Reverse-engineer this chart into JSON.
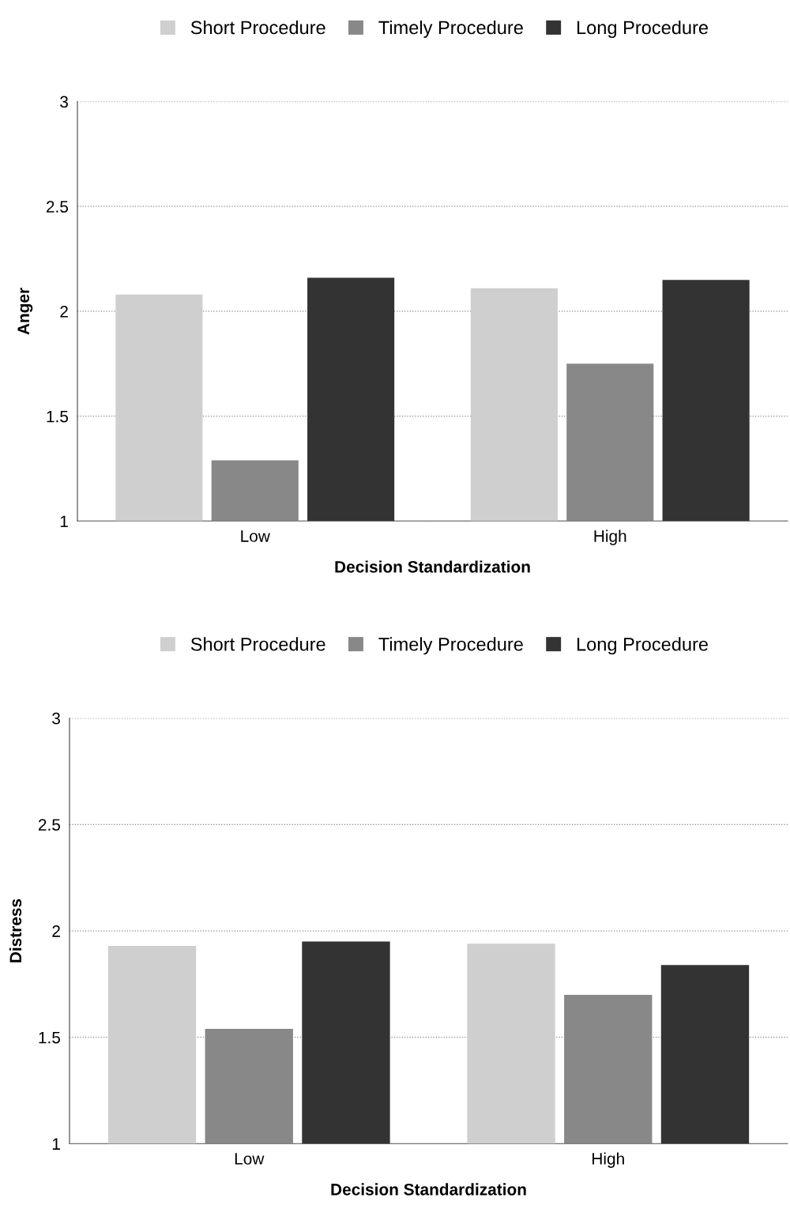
{
  "chart_data": [
    {
      "type": "bar",
      "xlabel": "Decision Standardization",
      "ylabel": "Anger",
      "categories": [
        "Low",
        "High"
      ],
      "series": [
        {
          "name": "Short Procedure",
          "color": "#cfcfcf",
          "values": [
            2.08,
            2.11
          ]
        },
        {
          "name": "Timely Procedure",
          "color": "#888888",
          "values": [
            1.29,
            1.75
          ]
        },
        {
          "name": "Long Procedure",
          "color": "#333333",
          "values": [
            2.16,
            2.15
          ]
        }
      ],
      "ylim": [
        1,
        3
      ],
      "yticks": [
        1,
        1.5,
        2,
        2.5,
        3
      ],
      "grid": "y",
      "legend": "top"
    },
    {
      "type": "bar",
      "xlabel": "Decision Standardization",
      "ylabel": "Distress",
      "categories": [
        "Low",
        "High"
      ],
      "series": [
        {
          "name": "Short Procedure",
          "color": "#cfcfcf",
          "values": [
            1.93,
            1.94
          ]
        },
        {
          "name": "Timely Procedure",
          "color": "#888888",
          "values": [
            1.54,
            1.7
          ]
        },
        {
          "name": "Long Procedure",
          "color": "#333333",
          "values": [
            1.95,
            1.84
          ]
        }
      ],
      "ylim": [
        1,
        3
      ],
      "yticks": [
        1,
        1.5,
        2,
        2.5,
        3
      ],
      "grid": "y",
      "legend": "top"
    }
  ]
}
